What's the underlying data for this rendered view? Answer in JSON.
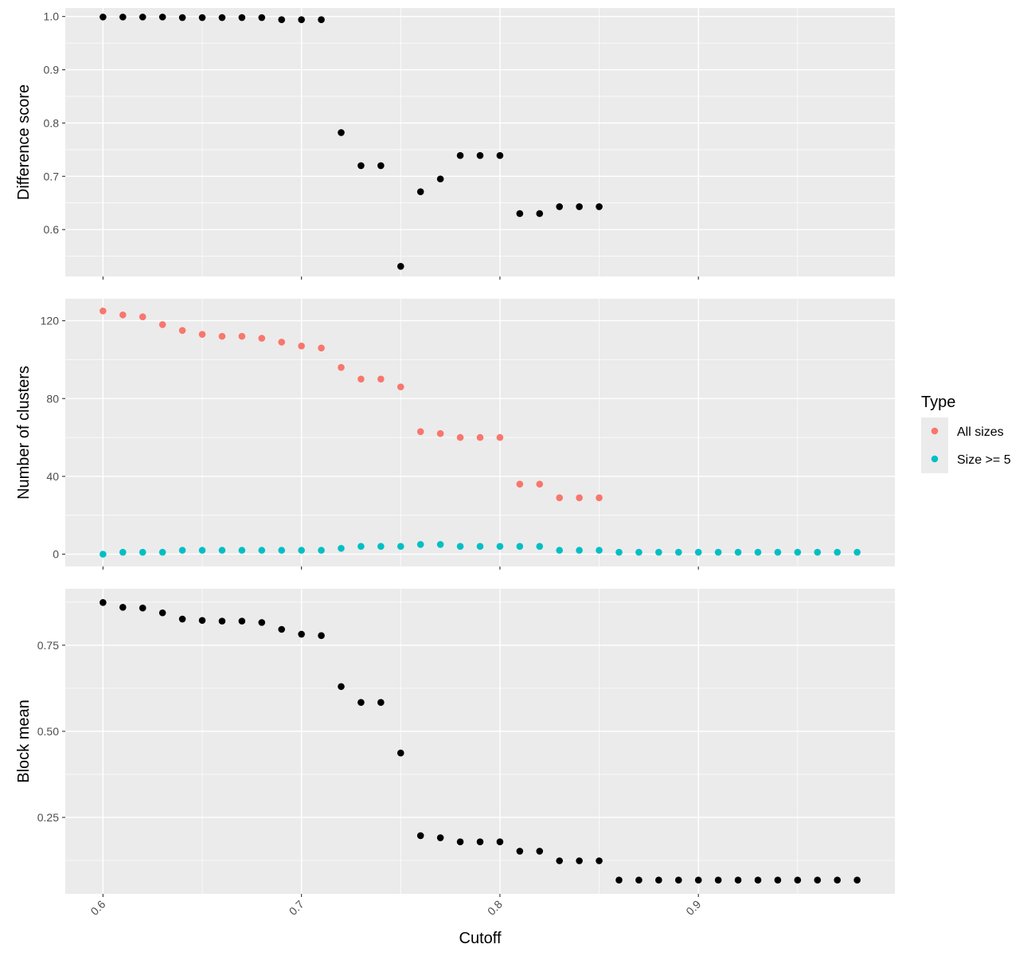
{
  "chart_data": [
    {
      "type": "scatter",
      "panel": "top",
      "ylabel": "Difference score",
      "xlim": [
        0.581,
        0.999
      ],
      "ylim": [
        0.512,
        1.016
      ],
      "y_ticks": [
        0.6,
        0.7,
        0.8,
        0.9,
        1.0
      ],
      "y_tick_labels": [
        "0.6",
        "0.7",
        "0.8",
        "0.9",
        "1.0"
      ],
      "grid": true,
      "color": "#000000",
      "series": [
        {
          "x": [
            0.6,
            0.61,
            0.62,
            0.63,
            0.64,
            0.65,
            0.66,
            0.67,
            0.68,
            0.69,
            0.7,
            0.71,
            0.72,
            0.73,
            0.74,
            0.75,
            0.76,
            0.77,
            0.78,
            0.79,
            0.8,
            0.81,
            0.82,
            0.83,
            0.84,
            0.85
          ],
          "y": [
            0.999,
            0.999,
            0.999,
            0.999,
            0.998,
            0.998,
            0.998,
            0.998,
            0.998,
            0.994,
            0.994,
            0.994,
            0.782,
            0.72,
            0.72,
            0.531,
            0.671,
            0.695,
            0.739,
            0.739,
            0.739,
            0.63,
            0.63,
            0.643,
            0.643,
            0.643
          ]
        }
      ]
    },
    {
      "type": "scatter",
      "panel": "middle",
      "ylabel": "Number of clusters",
      "xlim": [
        0.581,
        0.999
      ],
      "ylim": [
        -6.3,
        131.3
      ],
      "y_ticks": [
        0,
        40,
        80,
        120
      ],
      "y_tick_labels": [
        "0",
        "40",
        "80",
        "120"
      ],
      "grid": true,
      "legend": {
        "title": "Type",
        "position": "right",
        "entries": [
          {
            "label": "All sizes",
            "color": "#F8766D"
          },
          {
            "label": "Size >= 5",
            "color": "#00BFC4"
          }
        ]
      },
      "series": [
        {
          "name": "All sizes",
          "color": "#F8766D",
          "x": [
            0.6,
            0.61,
            0.62,
            0.63,
            0.64,
            0.65,
            0.66,
            0.67,
            0.68,
            0.69,
            0.7,
            0.71,
            0.72,
            0.73,
            0.74,
            0.75,
            0.76,
            0.77,
            0.78,
            0.79,
            0.8,
            0.81,
            0.82,
            0.83,
            0.84,
            0.85
          ],
          "y": [
            125,
            123,
            122,
            118,
            115,
            113,
            112,
            112,
            111,
            109,
            107,
            106,
            96,
            90,
            90,
            86,
            63,
            62,
            60,
            60,
            60,
            36,
            36,
            29,
            29,
            29
          ]
        },
        {
          "name": "Size >= 5",
          "color": "#00BFC4",
          "x": [
            0.6,
            0.61,
            0.62,
            0.63,
            0.64,
            0.65,
            0.66,
            0.67,
            0.68,
            0.69,
            0.7,
            0.71,
            0.72,
            0.73,
            0.74,
            0.75,
            0.76,
            0.77,
            0.78,
            0.79,
            0.8,
            0.81,
            0.82,
            0.83,
            0.84,
            0.85,
            0.86,
            0.87,
            0.88,
            0.89,
            0.9,
            0.91,
            0.92,
            0.93,
            0.94,
            0.95,
            0.96,
            0.97,
            0.98
          ],
          "y": [
            0,
            1,
            1,
            1,
            2,
            2,
            2,
            2,
            2,
            2,
            2,
            2,
            3,
            4,
            4,
            4,
            5,
            5,
            4,
            4,
            4,
            4,
            4,
            2,
            2,
            2,
            1,
            1,
            1,
            1,
            1,
            1,
            1,
            1,
            1,
            1,
            1,
            1,
            1
          ]
        }
      ]
    },
    {
      "type": "scatter",
      "panel": "bottom",
      "ylabel": "Block mean",
      "xlabel": "Cutoff",
      "xlim": [
        0.581,
        0.999
      ],
      "ylim": [
        0.028,
        0.914
      ],
      "x_ticks": [
        0.6,
        0.7,
        0.8,
        0.9
      ],
      "x_tick_labels": [
        "0.6",
        "0.7",
        "0.8",
        "0.9"
      ],
      "y_ticks": [
        0.25,
        0.5,
        0.75
      ],
      "y_tick_labels": [
        "0.25",
        "0.50",
        "0.75"
      ],
      "grid": true,
      "color": "#000000",
      "series": [
        {
          "x": [
            0.6,
            0.61,
            0.62,
            0.63,
            0.64,
            0.65,
            0.66,
            0.67,
            0.68,
            0.69,
            0.7,
            0.71,
            0.72,
            0.73,
            0.74,
            0.75,
            0.76,
            0.77,
            0.78,
            0.79,
            0.8,
            0.81,
            0.82,
            0.83,
            0.84,
            0.85,
            0.86,
            0.87,
            0.88,
            0.89,
            0.9,
            0.91,
            0.92,
            0.93,
            0.94,
            0.95,
            0.96,
            0.97,
            0.98
          ],
          "y": [
            0.874,
            0.86,
            0.858,
            0.844,
            0.826,
            0.822,
            0.82,
            0.82,
            0.816,
            0.796,
            0.782,
            0.778,
            0.63,
            0.584,
            0.584,
            0.437,
            0.197,
            0.191,
            0.179,
            0.179,
            0.179,
            0.152,
            0.152,
            0.124,
            0.124,
            0.124,
            0.068,
            0.068,
            0.068,
            0.068,
            0.068,
            0.068,
            0.068,
            0.068,
            0.068,
            0.068,
            0.068,
            0.068,
            0.068
          ]
        }
      ]
    }
  ]
}
